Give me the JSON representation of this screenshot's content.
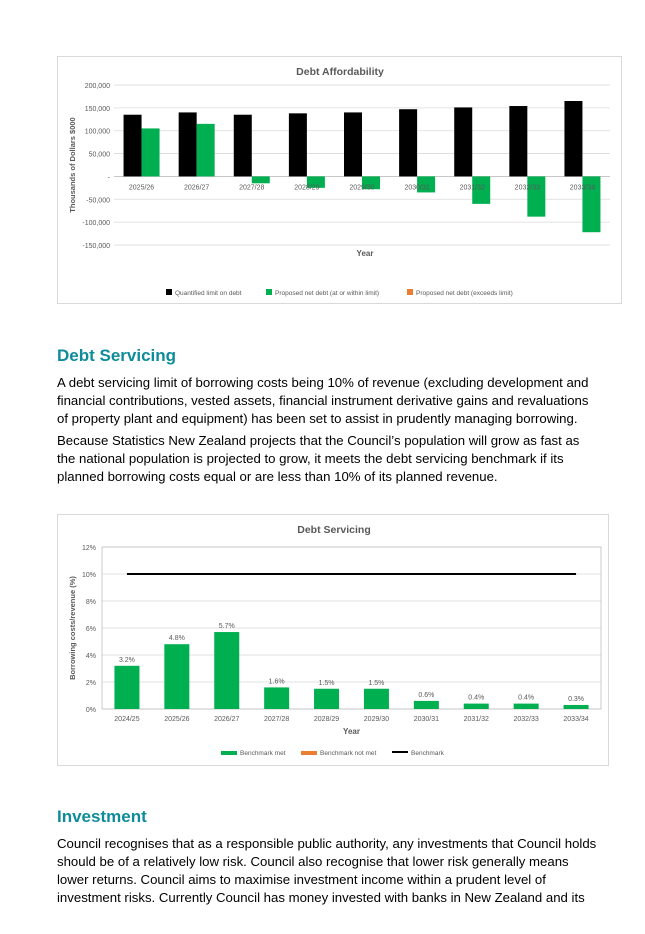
{
  "colors": {
    "heading": "#0e8c99",
    "limit_bar": "#000000",
    "benchmark_met": "#00b050",
    "benchmark_not_met": "#ed7d31",
    "benchmark_line": "#000000"
  },
  "debt_servicing": {
    "heading": "Debt Servicing",
    "paragraphs": [
      "A debt servicing limit of borrowing costs being 10% of revenue (excluding development and financial contributions, vested assets, financial instrument derivative gains and revaluations of property plant and equipment) has been set to assist in prudently managing borrowing.",
      "Because Statistics New Zealand projects that the Council’s population will grow as fast as the national population is projected to grow, it meets the debt servicing benchmark if its planned borrowing costs equal or are less than 10% of its planned revenue."
    ]
  },
  "investment": {
    "heading": "Investment",
    "paragraphs": [
      "Council recognises that as a responsible public authority, any investments that Council holds should be of a relatively low risk. Council also recognise that lower risk generally means lower returns. Council aims to maximise investment income within a prudent level of investment risks. Currently Council has money invested with banks in New Zealand and its"
    ]
  },
  "chart_data": [
    {
      "type": "bar",
      "title": "Debt Affordability",
      "xlabel": "Year",
      "ylabel": "Thousands of Dollars $000",
      "ylim": [
        -150000,
        200000
      ],
      "yticks": [
        200000,
        150000,
        100000,
        50000,
        0,
        -50000,
        -100000,
        -150000
      ],
      "ytick_labels": [
        "200,000",
        "150,000",
        "100,000",
        "50,000",
        "-",
        "-50,000",
        "-100,000",
        "-150,000"
      ],
      "categories": [
        "2025/26",
        "2026/27",
        "2027/28",
        "2028/29",
        "2029/30",
        "2030/31",
        "2031/32",
        "2032/33",
        "2033/34"
      ],
      "series": [
        {
          "name": "Quantified limit on debt",
          "values": [
            135000,
            140000,
            135000,
            138000,
            140000,
            147000,
            151000,
            154000,
            165000
          ]
        },
        {
          "name": "Proposed net debt (at or within limit)",
          "values": [
            105000,
            115000,
            -15000,
            -25000,
            -28000,
            -35000,
            -60000,
            -88000,
            -122000
          ]
        },
        {
          "name": "Proposed net debt (exceeds limit)",
          "values": [
            0,
            0,
            0,
            0,
            0,
            0,
            0,
            0,
            0
          ]
        }
      ],
      "grid": true,
      "legend": "bottom"
    },
    {
      "type": "bar",
      "title": "Debt Servicing",
      "xlabel": "Year",
      "ylabel": "Borrowing costs/revenue (%)",
      "ylim": [
        0,
        12
      ],
      "yticks": [
        12,
        10,
        8,
        6,
        4,
        2,
        0
      ],
      "ytick_labels": [
        "12%",
        "10%",
        "8%",
        "6%",
        "4%",
        "2%",
        "0%"
      ],
      "categories": [
        "2024/25",
        "2025/26",
        "2026/27",
        "2027/28",
        "2028/29",
        "2029/30",
        "2030/31",
        "2031/32",
        "2032/33",
        "2033/34"
      ],
      "series": [
        {
          "name": "Benchmark met",
          "values": [
            3.2,
            4.8,
            5.7,
            1.6,
            1.5,
            1.5,
            0.6,
            0.4,
            0.4,
            0.3
          ],
          "labels": [
            "3.2%",
            "4.8%",
            "5.7%",
            "1.6%",
            "1.5%",
            "1.5%",
            "0.6%",
            "0.4%",
            "0.4%",
            "0.3%"
          ]
        },
        {
          "name": "Benchmark not met",
          "values": [
            0,
            0,
            0,
            0,
            0,
            0,
            0,
            0,
            0,
            0
          ]
        },
        {
          "name": "Benchmark",
          "values": [
            10,
            10,
            10,
            10,
            10,
            10,
            10,
            10,
            10,
            10
          ]
        }
      ],
      "grid": true,
      "legend": "bottom"
    }
  ]
}
